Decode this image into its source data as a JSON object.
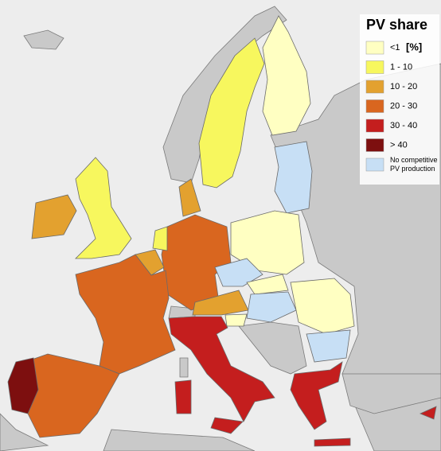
{
  "legend": {
    "title": "PV share",
    "unit": "[%]",
    "items": [
      {
        "label": [
          "<1"
        ],
        "color": "#ffffc2"
      },
      {
        "label": [
          "1 - 10"
        ],
        "color": "#f7f75e"
      },
      {
        "label": [
          "10 - 20"
        ],
        "color": "#e3a12f"
      },
      {
        "label": [
          "20 - 30"
        ],
        "color": "#d9661f"
      },
      {
        "label": [
          "30 - 40"
        ],
        "color": "#c41e1e"
      },
      {
        "label": [
          "> 40"
        ],
        "color": "#7d0f0f"
      },
      {
        "label": [
          "No competitive",
          "PV production"
        ],
        "color": "#c7dff5"
      }
    ]
  }
}
